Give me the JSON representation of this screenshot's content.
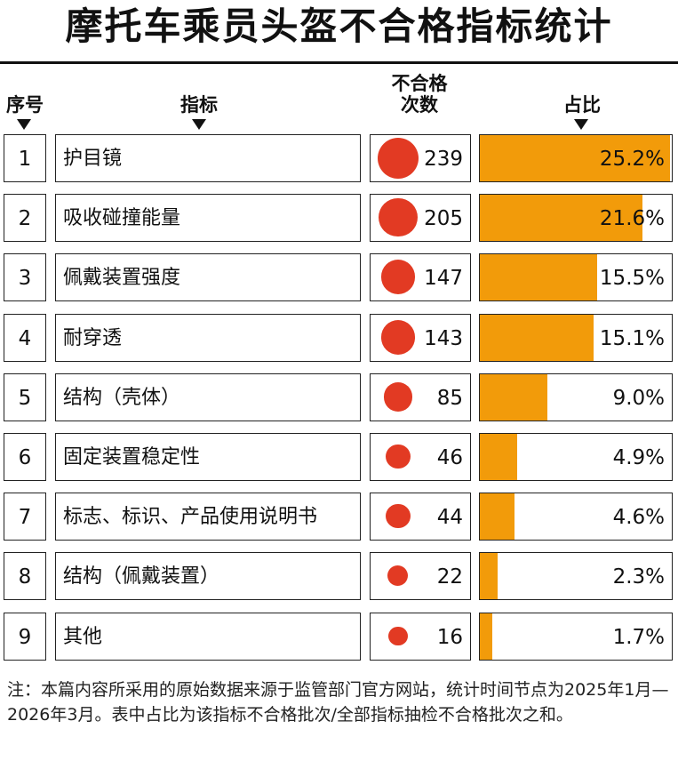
{
  "title": "摩托车乘员头盔不合格指标统计",
  "headers": {
    "index": "序号",
    "indicator": "指标",
    "count": "不合格次数",
    "share": "占比"
  },
  "colors": {
    "dot": "#e23a23",
    "bar": "#f29b0a"
  },
  "chart_data": {
    "type": "table",
    "rows": [
      {
        "index": "1",
        "name": "护目镜",
        "count": 239,
        "count_label": "239",
        "share": 25.2,
        "share_label": "25.2%"
      },
      {
        "index": "2",
        "name": "吸收碰撞能量",
        "count": 205,
        "count_label": "205",
        "share": 21.6,
        "share_label": "21.6%"
      },
      {
        "index": "3",
        "name": "佩戴装置强度",
        "count": 147,
        "count_label": "147",
        "share": 15.5,
        "share_label": "15.5%"
      },
      {
        "index": "4",
        "name": "耐穿透",
        "count": 143,
        "count_label": "143",
        "share": 15.1,
        "share_label": "15.1%"
      },
      {
        "index": "5",
        "name": "结构（壳体）",
        "count": 85,
        "count_label": "85",
        "share": 9.0,
        "share_label": "9.0%"
      },
      {
        "index": "6",
        "name": "固定装置稳定性",
        "count": 46,
        "count_label": "46",
        "share": 4.9,
        "share_label": "4.9%"
      },
      {
        "index": "7",
        "name": "标志、标识、产品使用说明书",
        "count": 44,
        "count_label": "44",
        "share": 4.6,
        "share_label": "4.6%"
      },
      {
        "index": "8",
        "name": "结构（佩戴装置）",
        "count": 22,
        "count_label": "22",
        "share": 2.3,
        "share_label": "2.3%"
      },
      {
        "index": "9",
        "name": "其他",
        "count": 16,
        "count_label": "16",
        "share": 1.7,
        "share_label": "1.7%"
      }
    ]
  },
  "note": "注：本篇内容所采用的原始数据来源于监管部门官方网站，统计时间节点为2025年1月—2026年3月。表中占比为该指标不合格批次/全部指标抽检不合格批次之和。"
}
